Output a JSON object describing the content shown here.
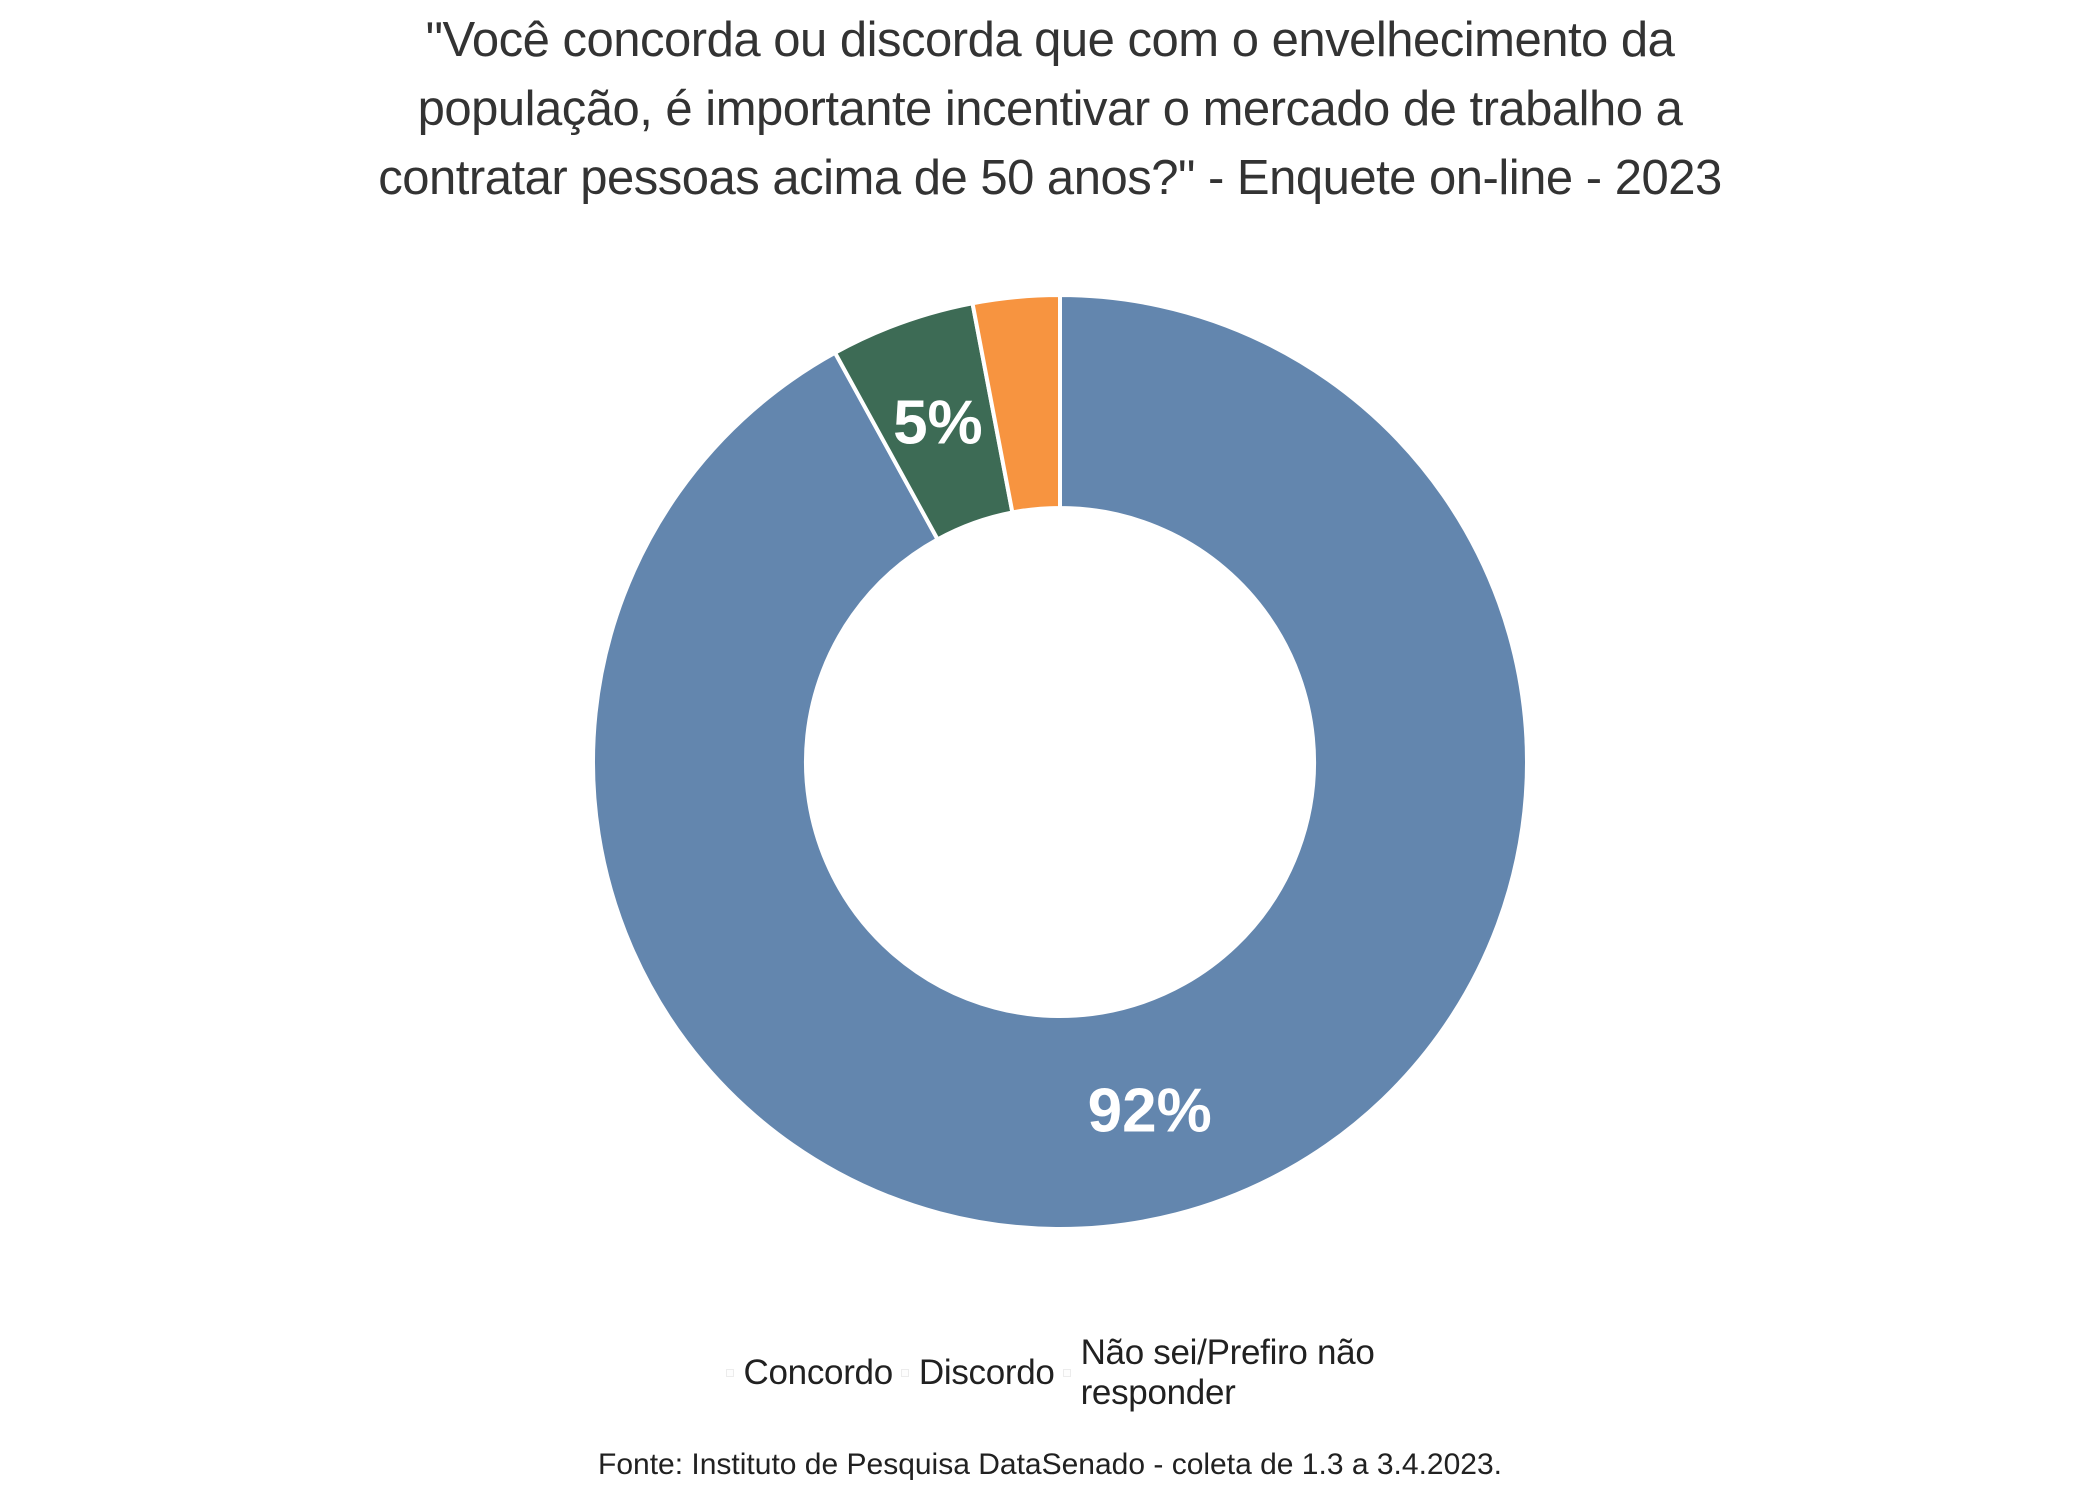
{
  "title": {
    "lines": [
      "\"Você concorda ou discorda que com o envelhecimento da",
      "população, é importante incentivar o mercado de trabalho a",
      "contratar pessoas acima de 50 anos?\" - Enquete on-line - 2023"
    ]
  },
  "chart_data": {
    "type": "pie",
    "subtype": "donut",
    "title": "\"Você concorda ou discorda que com o envelhecimento da população, é importante incentivar o mercado de trabalho a contratar pessoas acima de 50 anos?\" - Enquete on-line - 2023",
    "slices": [
      {
        "name": "Concordo",
        "value": 92,
        "label": "92%",
        "color": "#6386ae"
      },
      {
        "name": "Discordo",
        "value": 5,
        "label": "5%",
        "color": "#3d6b55"
      },
      {
        "name": "Não sei/Prefiro não responder",
        "value": 3,
        "label": "",
        "color": "#f79440"
      }
    ],
    "start_angle_deg": 0,
    "direction": "clockwise",
    "inner_radius_ratio": 0.544,
    "slice_gap_stroke_color": "#ffffff",
    "slice_label_color": "#ffffff",
    "legend_position": "bottom"
  },
  "legend": {
    "items": [
      {
        "line1": "Concordo",
        "line2": "",
        "color": "#6386ae"
      },
      {
        "line1": "Discordo",
        "line2": "",
        "color": "#3d6b55"
      },
      {
        "line1": "Não sei/Prefiro não",
        "line2": "responder",
        "color": "#f79440"
      }
    ]
  },
  "footer": {
    "source": "Fonte: Instituto de Pesquisa DataSenado - coleta de 1.3 a 3.4.2023."
  }
}
